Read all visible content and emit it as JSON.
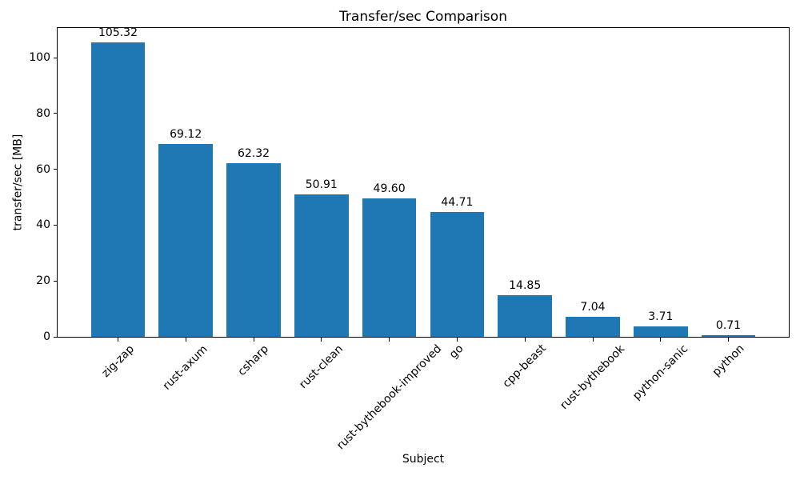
{
  "chart_data": {
    "type": "bar",
    "title": "Transfer/sec Comparison",
    "xlabel": "Subject",
    "ylabel": "transfer/sec [MB]",
    "categories": [
      "zig-zap",
      "rust-axum",
      "csharp",
      "rust-clean",
      "rust-bythebook-improved",
      "go",
      "cpp-beast",
      "rust-bythebook",
      "python-sanic",
      "python"
    ],
    "values": [
      105.32,
      69.12,
      62.32,
      50.91,
      49.6,
      44.71,
      14.85,
      7.04,
      3.71,
      0.71
    ],
    "value_labels": [
      "105.32",
      "69.12",
      "62.32",
      "50.91",
      "49.60",
      "44.71",
      "14.85",
      "7.04",
      "3.71",
      "0.71"
    ],
    "ylim": [
      0,
      110.6
    ],
    "yticks": [
      0,
      20,
      40,
      60,
      80,
      100
    ],
    "ytick_labels": [
      "0",
      "20",
      "40",
      "60",
      "80",
      "100"
    ],
    "xtick_rotation": 45,
    "grid": false,
    "legend": null,
    "bar_color": "#1f77b4"
  }
}
